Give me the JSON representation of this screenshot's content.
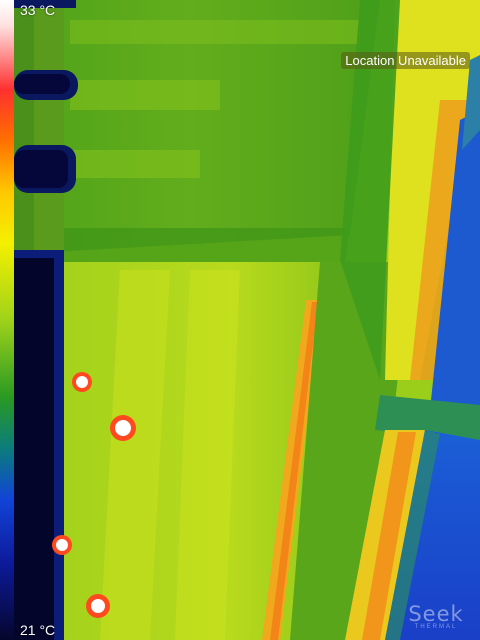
{
  "temperature_scale": {
    "max_label": "33 °C",
    "min_label": "21 °C"
  },
  "status": {
    "location": "Location Unavailable"
  },
  "brand": {
    "name": "Seek",
    "subtitle": "THERMAL"
  },
  "colors": {
    "hot": "#ff3030",
    "warm": "#ffc800",
    "mid": "#9fd21a",
    "cool": "#1144d8",
    "cold": "#05062c"
  }
}
